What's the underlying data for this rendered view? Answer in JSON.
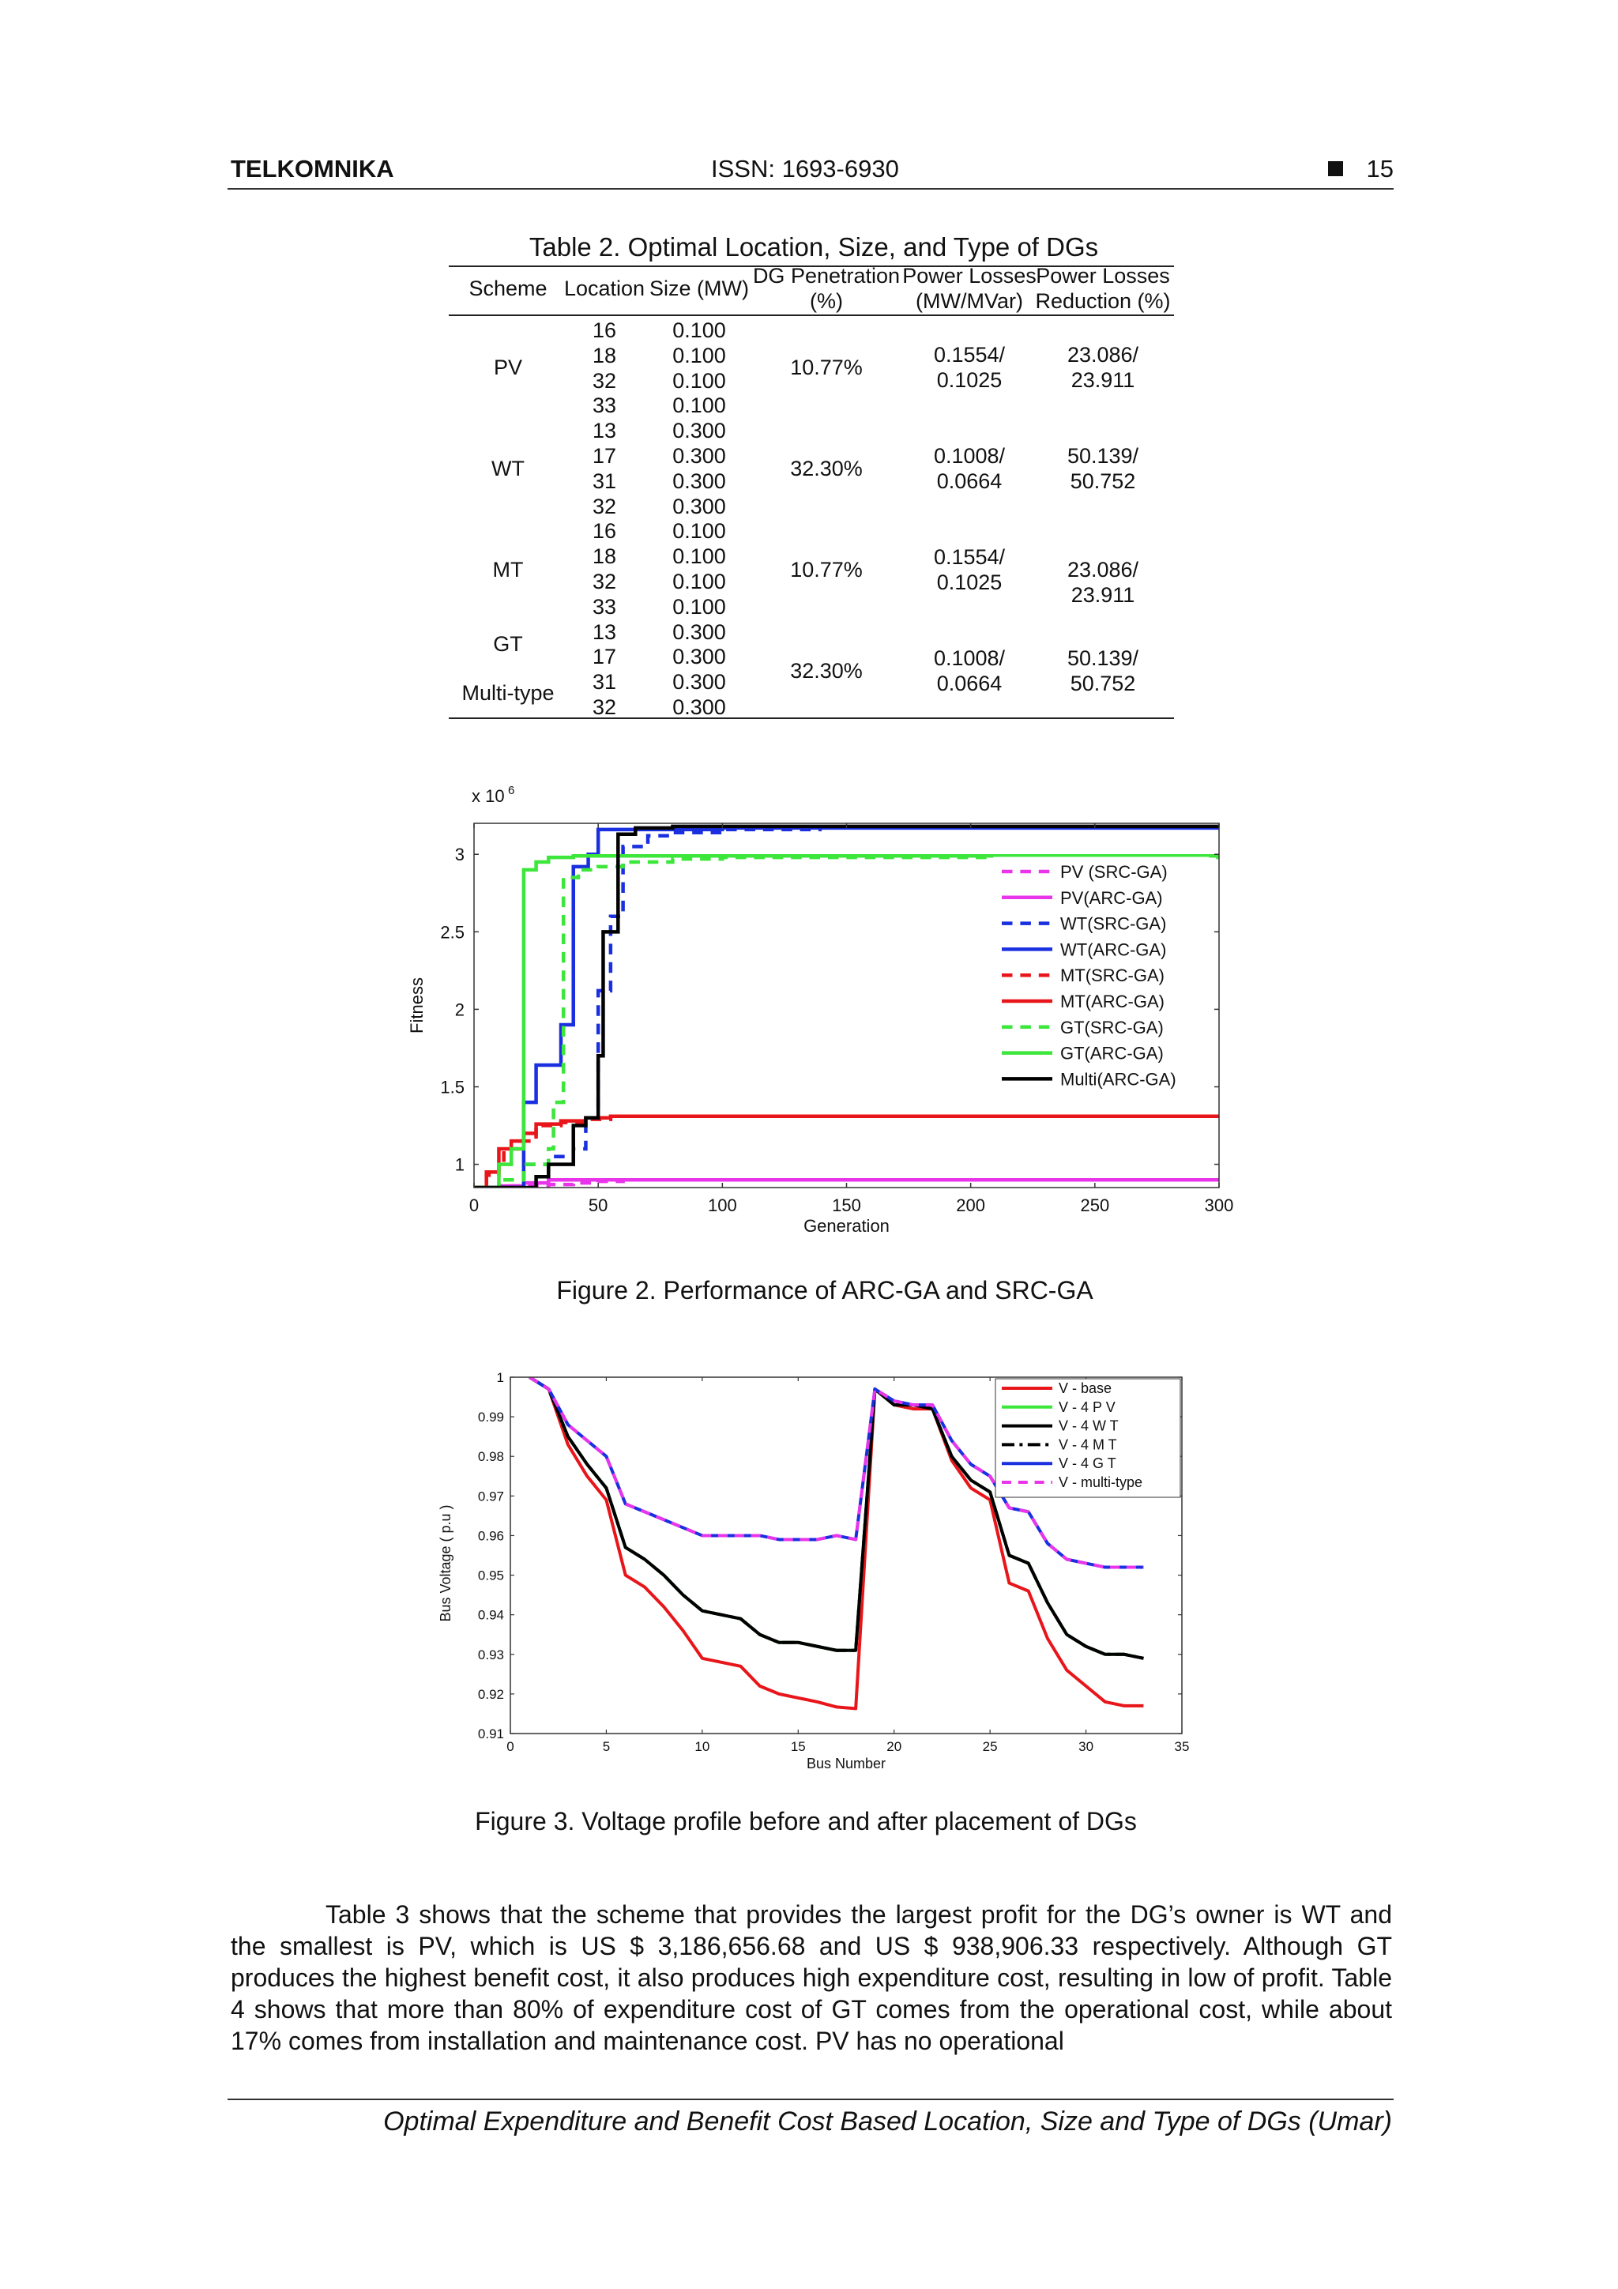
{
  "header": {
    "journal": "TELKOMNIKA",
    "issn": "ISSN: 1693-6930",
    "page_number": "15"
  },
  "table2": {
    "caption": "Table 2. Optimal Location, Size, and Type of DGs",
    "columns": {
      "scheme": "Scheme",
      "location": "Location",
      "size": "Size (MW)",
      "penetration_1": "DG Penetration",
      "penetration_2": "(%)",
      "losses_1": "Power Losses",
      "losses_2": "(MW/MVar)",
      "reduction_1": "Power Losses",
      "reduction_2": "Reduction (%)"
    },
    "rows": [
      {
        "location": "16",
        "size": "0.100"
      },
      {
        "location": "18",
        "size": "0.100"
      },
      {
        "location": "32",
        "size": "0.100"
      },
      {
        "location": "33",
        "size": "0.100"
      },
      {
        "location": "13",
        "size": "0.300"
      },
      {
        "location": "17",
        "size": "0.300"
      },
      {
        "location": "31",
        "size": "0.300"
      },
      {
        "location": "32",
        "size": "0.300"
      },
      {
        "location": "16",
        "size": "0.100"
      },
      {
        "location": "18",
        "size": "0.100"
      },
      {
        "location": "32",
        "size": "0.100"
      },
      {
        "location": "33",
        "size": "0.100"
      },
      {
        "location": "13",
        "size": "0.300"
      },
      {
        "location": "17",
        "size": "0.300"
      },
      {
        "location": "31",
        "size": "0.300"
      },
      {
        "location": "32",
        "size": "0.300"
      }
    ],
    "schemes": [
      "PV",
      "WT",
      "MT",
      "GT",
      "Multi-type"
    ],
    "groups": [
      {
        "penetration": "10.77%",
        "losses_1": "0.1554/",
        "losses_2": "0.1025",
        "reduction_1": "23.086/",
        "reduction_2": "23.911"
      },
      {
        "penetration": "32.30%",
        "losses_1": "0.1008/",
        "losses_2": "0.0664",
        "reduction_1": "50.139/",
        "reduction_2": "50.752"
      },
      {
        "penetration": "10.77%",
        "losses_1": "0.1554/",
        "losses_2": "0.1025",
        "reduction_1": "23.086/",
        "reduction_2": "23.911"
      },
      {
        "penetration": "32.30%",
        "losses_1": "0.1008/",
        "losses_2": "0.0664",
        "reduction_1": "50.139/",
        "reduction_2": "50.752"
      }
    ]
  },
  "figure2": {
    "caption": "Figure 2.  Performance of ARC-GA and SRC-GA"
  },
  "figure3": {
    "caption": "Figure 3.  Voltage profile before and after placement of DGs"
  },
  "chart_data": [
    {
      "id": "figure2",
      "type": "line",
      "xlabel": "Generation",
      "ylabel": "Fitness",
      "y_multiplier": "x 10",
      "y_multiplier_exp": "6",
      "xlim": [
        0,
        300
      ],
      "ylim": [
        0.85,
        3.2
      ],
      "x_ticks": [
        0,
        50,
        100,
        150,
        200,
        250,
        300
      ],
      "y_ticks": [
        1,
        1.5,
        2,
        2.5,
        3
      ],
      "legend_position": "right",
      "series": [
        {
          "name": "PV (SRC-GA)",
          "color": "#e935e9",
          "dash": "dashed",
          "x": [
            0,
            10,
            20,
            30,
            40,
            50,
            60,
            100,
            150
          ],
          "y": [
            0.85,
            0.86,
            0.86,
            0.87,
            0.88,
            0.89,
            0.9,
            0.9,
            0.9
          ]
        },
        {
          "name": "PV(ARC-GA)",
          "color": "#e935e9",
          "dash": "solid",
          "x": [
            0,
            10,
            20,
            30,
            40,
            50,
            60,
            100,
            200,
            300
          ],
          "y": [
            0.85,
            0.86,
            0.88,
            0.9,
            0.9,
            0.9,
            0.9,
            0.9,
            0.9,
            0.9
          ]
        },
        {
          "name": "WT(SRC-GA)",
          "color": "#1a2fe0",
          "dash": "dashed",
          "x": [
            0,
            15,
            20,
            30,
            40,
            45,
            50,
            55,
            60,
            70,
            80,
            100,
            140
          ],
          "y": [
            0.85,
            0.85,
            1.0,
            1.05,
            1.1,
            1.3,
            2.12,
            2.6,
            3.05,
            3.12,
            3.14,
            3.16,
            3.16
          ]
        },
        {
          "name": "WT(ARC-GA)",
          "color": "#1a2fe0",
          "dash": "solid",
          "x": [
            0,
            15,
            20,
            25,
            28,
            35,
            40,
            46,
            50,
            100,
            200,
            300
          ],
          "y": [
            0.85,
            0.85,
            1.4,
            1.64,
            1.64,
            1.9,
            2.92,
            3.0,
            3.16,
            3.17,
            3.17,
            3.17
          ]
        },
        {
          "name": "MT(SRC-GA)",
          "color": "#e8151a",
          "dash": "dashed",
          "x": [
            0,
            5,
            10,
            12,
            18,
            25,
            35,
            45,
            55
          ],
          "y": [
            0.85,
            0.93,
            1.0,
            1.1,
            1.15,
            1.25,
            1.27,
            1.29,
            1.31
          ]
        },
        {
          "name": "MT(ARC-GA)",
          "color": "#e8151a",
          "dash": "solid",
          "x": [
            0,
            5,
            10,
            15,
            20,
            25,
            35,
            45,
            55,
            100,
            200,
            300
          ],
          "y": [
            0.85,
            0.95,
            1.1,
            1.15,
            1.2,
            1.26,
            1.28,
            1.3,
            1.31,
            1.31,
            1.31,
            1.31
          ]
        },
        {
          "name": "GT(SRC-GA)",
          "color": "#3ce63a",
          "dash": "dashed",
          "x": [
            0,
            10,
            20,
            30,
            32,
            36,
            42,
            50,
            60,
            80,
            100,
            150,
            300
          ],
          "y": [
            0.85,
            0.9,
            1.0,
            1.1,
            1.4,
            2.85,
            2.9,
            2.92,
            2.95,
            2.97,
            2.98,
            2.98,
            2.98
          ]
        },
        {
          "name": "GT(ARC-GA)",
          "color": "#3ce63a",
          "dash": "solid",
          "x": [
            0,
            10,
            15,
            20,
            25,
            30,
            40,
            100,
            200,
            300
          ],
          "y": [
            0.85,
            1.0,
            1.1,
            2.9,
            2.95,
            2.98,
            2.99,
            2.99,
            2.99,
            2.99
          ]
        },
        {
          "name": "Multi(ARC-GA)",
          "color": "#000000",
          "dash": "solid",
          "x": [
            0,
            20,
            25,
            30,
            40,
            45,
            50,
            52,
            58,
            65,
            80,
            100,
            200,
            300
          ],
          "y": [
            0.85,
            0.85,
            0.92,
            1.0,
            1.25,
            1.3,
            1.7,
            2.5,
            3.13,
            3.17,
            3.18,
            3.18,
            3.18,
            3.18
          ]
        }
      ]
    },
    {
      "id": "figure3",
      "type": "line",
      "xlabel": "Bus Number",
      "ylabel": "Bus  Voltage  ( p.u )",
      "xlim": [
        0,
        35
      ],
      "ylim": [
        0.91,
        1.0
      ],
      "x_ticks": [
        0,
        5,
        10,
        15,
        20,
        25,
        30,
        35
      ],
      "y_ticks": [
        0.91,
        0.92,
        0.93,
        0.94,
        0.95,
        0.96,
        0.97,
        0.98,
        0.99,
        1
      ],
      "legend_position": "top-right",
      "x": [
        1,
        2,
        3,
        4,
        5,
        6,
        7,
        8,
        9,
        10,
        11,
        12,
        13,
        14,
        15,
        16,
        17,
        18,
        19,
        20,
        21,
        22,
        23,
        24,
        25,
        26,
        27,
        28,
        29,
        30,
        31,
        32,
        33
      ],
      "series": [
        {
          "name": "V - base",
          "color": "#e8151a",
          "dash": "solid",
          "values": [
            1.0,
            0.997,
            0.983,
            0.975,
            0.969,
            0.95,
            0.947,
            0.942,
            0.936,
            0.929,
            0.928,
            0.927,
            0.922,
            0.92,
            0.919,
            0.918,
            0.9167,
            0.9163,
            0.997,
            0.993,
            0.992,
            0.992,
            0.979,
            0.972,
            0.969,
            0.948,
            0.946,
            0.934,
            0.926,
            0.922,
            0.918,
            0.917,
            0.917
          ]
        },
        {
          "name": "V - 4 P V",
          "color": "#3ce63a",
          "dash": "solid",
          "values": [
            1.0,
            0.997,
            0.985,
            0.978,
            0.972,
            0.957,
            0.954,
            0.95,
            0.945,
            0.941,
            0.94,
            0.939,
            0.935,
            0.933,
            0.933,
            0.932,
            0.931,
            0.931,
            0.997,
            0.993,
            0.993,
            0.992,
            0.98,
            0.974,
            0.971,
            0.955,
            0.953,
            0.943,
            0.935,
            0.932,
            0.93,
            0.93,
            0.929
          ]
        },
        {
          "name": "V - 4 W T",
          "color": "#000000",
          "dash": "solid",
          "values": [
            1.0,
            0.997,
            0.985,
            0.978,
            0.972,
            0.957,
            0.954,
            0.95,
            0.945,
            0.941,
            0.94,
            0.939,
            0.935,
            0.933,
            0.933,
            0.932,
            0.931,
            0.931,
            0.997,
            0.993,
            0.993,
            0.992,
            0.98,
            0.974,
            0.971,
            0.955,
            0.953,
            0.943,
            0.935,
            0.932,
            0.93,
            0.93,
            0.929
          ]
        },
        {
          "name": "V - 4 M T",
          "color": "#000000",
          "dash": "dashdot",
          "values": [
            1.0,
            0.997,
            0.985,
            0.978,
            0.972,
            0.957,
            0.954,
            0.95,
            0.945,
            0.941,
            0.94,
            0.939,
            0.935,
            0.933,
            0.933,
            0.932,
            0.931,
            0.931,
            0.997,
            0.993,
            0.993,
            0.992,
            0.98,
            0.974,
            0.971,
            0.955,
            0.953,
            0.943,
            0.935,
            0.932,
            0.93,
            0.93,
            0.929
          ]
        },
        {
          "name": "V - 4  G T",
          "color": "#1a2fe0",
          "dash": "solid",
          "values": [
            1.0,
            0.997,
            0.988,
            0.984,
            0.98,
            0.968,
            0.966,
            0.964,
            0.962,
            0.96,
            0.96,
            0.96,
            0.96,
            0.959,
            0.959,
            0.959,
            0.96,
            0.959,
            0.997,
            0.994,
            0.993,
            0.993,
            0.984,
            0.978,
            0.975,
            0.967,
            0.966,
            0.958,
            0.954,
            0.953,
            0.952,
            0.952,
            0.952
          ]
        },
        {
          "name": "V - multi-type",
          "color": "#e935e9",
          "dash": "dashed",
          "values": [
            1.0,
            0.997,
            0.988,
            0.984,
            0.98,
            0.968,
            0.966,
            0.964,
            0.962,
            0.96,
            0.96,
            0.96,
            0.96,
            0.959,
            0.959,
            0.959,
            0.96,
            0.959,
            0.997,
            0.994,
            0.993,
            0.993,
            0.984,
            0.978,
            0.975,
            0.967,
            0.966,
            0.958,
            0.954,
            0.953,
            0.952,
            0.952,
            0.952
          ]
        }
      ]
    }
  ],
  "body": {
    "paragraph": "Table 3 shows that the scheme that provides the largest profit for the DG’s owner is WT and the smallest is PV, which is US $ 3,186,656.68 and US $ 938,906.33 respectively. Although GT produces the highest benefit cost, it also produces high expenditure cost, resulting in low of profit. Table 4 shows that more than 80% of expenditure cost of GT comes from the operational cost, while about 17% comes from installation and maintenance cost. PV has no operational"
  },
  "footer": {
    "text": "Optimal Expenditure and Benefit Cost Based Location, Size and Type of DGs (Umar)"
  }
}
